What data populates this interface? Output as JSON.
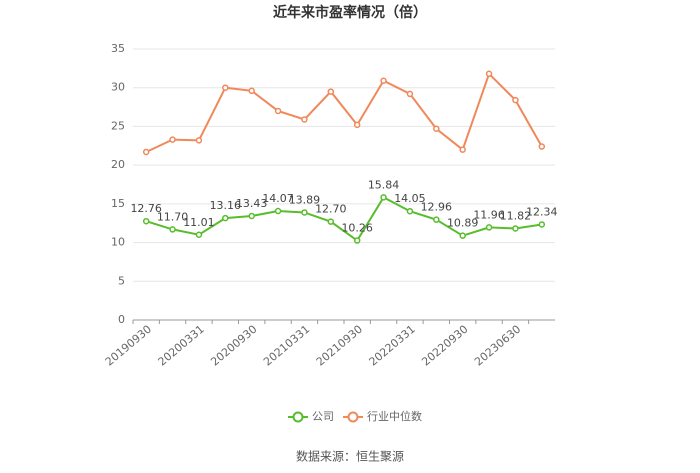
{
  "chart_data": {
    "type": "line",
    "title": "近年来市盈率情况（倍）",
    "categories": [
      "20190930",
      null,
      "20200331",
      null,
      "20200930",
      null,
      "20210331",
      null,
      "20210930",
      null,
      "20220331",
      null,
      "20220930",
      null,
      "20230630",
      null
    ],
    "series": [
      {
        "name": "公司",
        "color": "#58bd2c",
        "values": [
          12.76,
          11.7,
          11.01,
          13.16,
          13.43,
          14.07,
          13.89,
          12.7,
          10.26,
          15.84,
          14.05,
          12.96,
          10.89,
          11.96,
          11.82,
          12.34
        ],
        "value_labels": [
          "12.76",
          "11.70",
          "11.01",
          "13.16",
          "13.43",
          "14.07",
          "13.89",
          "12.70",
          "10.26",
          "15.84",
          "14.05",
          "12.96",
          "10.89",
          "11.96",
          "11.82",
          "12.34"
        ]
      },
      {
        "name": "行业中位数",
        "color": "#f0885a",
        "values": [
          21.7,
          23.3,
          23.2,
          30.0,
          29.6,
          27.0,
          25.9,
          29.5,
          25.2,
          30.9,
          29.2,
          24.7,
          22.0,
          31.8,
          28.4,
          22.4
        ]
      }
    ],
    "ylim": [
      0,
      35
    ],
    "yticks": [
      0,
      5,
      10,
      15,
      20,
      25,
      30,
      35
    ],
    "grid": true,
    "source": "数据来源：恒生聚源"
  }
}
